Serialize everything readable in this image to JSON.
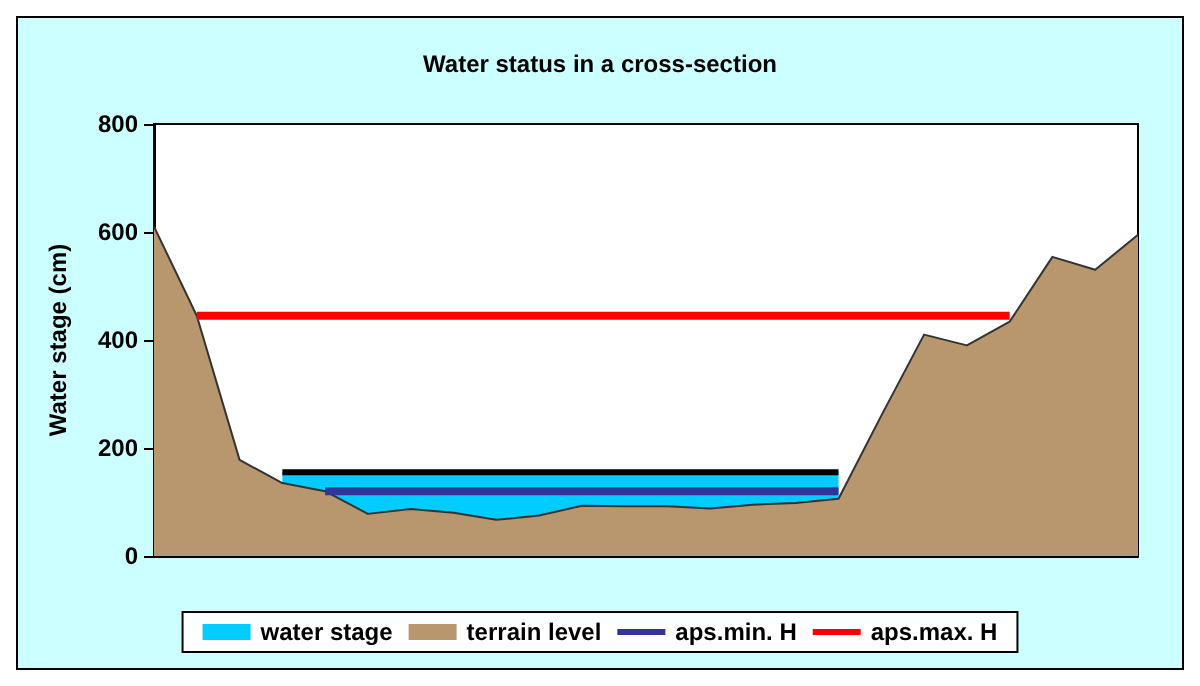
{
  "chart_data": {
    "type": "area",
    "title": "Water status in a cross-section",
    "ylabel": "Water stage (cm)",
    "categories": [
      null,
      null,
      null,
      null,
      null,
      null,
      null,
      null,
      null,
      null,
      null,
      null,
      null,
      null,
      null,
      null,
      null,
      null,
      null,
      null,
      null,
      null,
      null,
      null
    ],
    "ylim": [
      0,
      800
    ],
    "yticks": [
      0,
      200,
      400,
      600,
      800
    ],
    "grid": false,
    "legend": "bottom",
    "series": [
      {
        "name": "water stage",
        "color": "#00ccff",
        "values": [
          null,
          null,
          null,
          155,
          155,
          155,
          155,
          155,
          155,
          155,
          155,
          155,
          155,
          155,
          155,
          155,
          155,
          null,
          null,
          null,
          null,
          null,
          null,
          null
        ]
      },
      {
        "name": "terrain level",
        "color": "#b8966e",
        "values": [
          610,
          445,
          178,
          135,
          120,
          78,
          87,
          80,
          67,
          75,
          93,
          92,
          92,
          88,
          95,
          98,
          106,
          260,
          410,
          390,
          434,
          554,
          530,
          595
        ]
      },
      {
        "name": "aps.min. H",
        "type": "line",
        "color": "#333399",
        "values": [
          null,
          null,
          null,
          null,
          120,
          120,
          120,
          120,
          120,
          120,
          120,
          120,
          120,
          120,
          120,
          120,
          120,
          null,
          null,
          null,
          null,
          null,
          null,
          null
        ]
      },
      {
        "name": "aps.max. H",
        "type": "line",
        "color": "#ff0000",
        "values": [
          null,
          445,
          445,
          445,
          445,
          445,
          445,
          445,
          445,
          445,
          445,
          445,
          445,
          445,
          445,
          445,
          445,
          445,
          445,
          445,
          445,
          null,
          null,
          null
        ]
      }
    ]
  }
}
